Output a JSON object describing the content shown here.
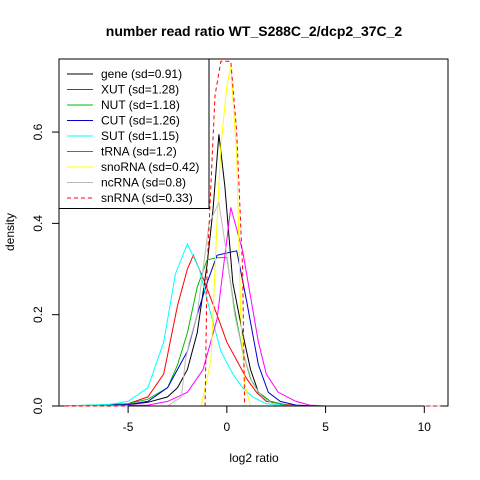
{
  "chart_data": {
    "type": "line",
    "title": "number read ratio WT_S288C_2/dcp2_37C_2",
    "xlabel": "log2 ratio",
    "ylabel": "density",
    "xlim": [
      -8.5,
      11.2
    ],
    "ylim": [
      0,
      0.76
    ],
    "xticks": [
      -5,
      0,
      5,
      10
    ],
    "yticks": [
      0.0,
      0.2,
      0.4,
      0.6
    ],
    "xtick_labels": [
      "-5",
      "0",
      "5",
      "10"
    ],
    "ytick_labels": [
      "0.0",
      "0.2",
      "0.4",
      "0.6"
    ],
    "grid": false,
    "legend_position": "top-left",
    "series": [
      {
        "name": "gene (sd=0.91)",
        "color": "#000000",
        "dashed": false,
        "points": [
          [
            -8.2,
            0
          ],
          [
            -5,
            0.003
          ],
          [
            -4,
            0.008
          ],
          [
            -3,
            0.02
          ],
          [
            -2.5,
            0.04
          ],
          [
            -2,
            0.08
          ],
          [
            -1.5,
            0.16
          ],
          [
            -1,
            0.31
          ],
          [
            -0.7,
            0.43
          ],
          [
            -0.4,
            0.595
          ],
          [
            -0.1,
            0.48
          ],
          [
            0.3,
            0.27
          ],
          [
            0.8,
            0.16
          ],
          [
            1.2,
            0.08
          ],
          [
            1.6,
            0.03
          ],
          [
            2.2,
            0.01
          ],
          [
            3,
            0.002
          ],
          [
            4,
            0
          ],
          [
            10.8,
            0
          ]
        ]
      },
      {
        "name": "XUT (sd=1.28)",
        "color": "#ff0000",
        "dashed": false,
        "points": [
          [
            -8.2,
            0
          ],
          [
            -6,
            0.002
          ],
          [
            -5,
            0.005
          ],
          [
            -4,
            0.02
          ],
          [
            -3.2,
            0.07
          ],
          [
            -2.5,
            0.22
          ],
          [
            -2,
            0.3
          ],
          [
            -1.7,
            0.33
          ],
          [
            -1.2,
            0.28
          ],
          [
            -0.5,
            0.2
          ],
          [
            0,
            0.14
          ],
          [
            0.5,
            0.1
          ],
          [
            1,
            0.06
          ],
          [
            1.5,
            0.03
          ],
          [
            2,
            0.01
          ],
          [
            3,
            0.003
          ],
          [
            4,
            0
          ],
          [
            10.8,
            0
          ]
        ]
      },
      {
        "name": "NUT (sd=1.18)",
        "color": "#00bb00",
        "dashed": false,
        "points": [
          [
            -8.2,
            0
          ],
          [
            -5,
            0.005
          ],
          [
            -4,
            0.015
          ],
          [
            -3,
            0.04
          ],
          [
            -2.5,
            0.09
          ],
          [
            -2,
            0.16
          ],
          [
            -1.5,
            0.26
          ],
          [
            -1,
            0.32
          ],
          [
            -0.5,
            0.325
          ],
          [
            0,
            0.325
          ],
          [
            0.4,
            0.21
          ],
          [
            0.8,
            0.12
          ],
          [
            1.2,
            0.06
          ],
          [
            1.6,
            0.03
          ],
          [
            2.2,
            0.01
          ],
          [
            3,
            0.002
          ],
          [
            4,
            0
          ],
          [
            10.8,
            0
          ]
        ]
      },
      {
        "name": "CUT (sd=1.26)",
        "color": "#0000cc",
        "dashed": false,
        "points": [
          [
            -8.2,
            0
          ],
          [
            -5,
            0.003
          ],
          [
            -4,
            0.01
          ],
          [
            -3,
            0.04
          ],
          [
            -2.5,
            0.08
          ],
          [
            -2,
            0.12
          ],
          [
            -1.5,
            0.2
          ],
          [
            -1,
            0.27
          ],
          [
            -0.5,
            0.33
          ],
          [
            0,
            0.335
          ],
          [
            0.5,
            0.34
          ],
          [
            1,
            0.23
          ],
          [
            1.6,
            0.09
          ],
          [
            2.1,
            0.03
          ],
          [
            2.7,
            0.01
          ],
          [
            3.5,
            0.002
          ],
          [
            4.5,
            0
          ],
          [
            10.8,
            0
          ]
        ]
      },
      {
        "name": "SUT (sd=1.15)",
        "color": "#00ffff",
        "dashed": false,
        "points": [
          [
            -8.2,
            0
          ],
          [
            -6,
            0.003
          ],
          [
            -5,
            0.01
          ],
          [
            -4,
            0.04
          ],
          [
            -3.2,
            0.14
          ],
          [
            -2.6,
            0.29
          ],
          [
            -2,
            0.355
          ],
          [
            -1.4,
            0.3
          ],
          [
            -0.8,
            0.2
          ],
          [
            -0.3,
            0.12
          ],
          [
            0.3,
            0.07
          ],
          [
            0.8,
            0.04
          ],
          [
            1.3,
            0.02
          ],
          [
            2,
            0.005
          ],
          [
            3,
            0.001
          ],
          [
            4,
            0
          ],
          [
            10.8,
            0
          ]
        ]
      },
      {
        "name": "tRNA (sd=1.2)",
        "color": "#ff00ff",
        "dashed": false,
        "points": [
          [
            -8.2,
            0
          ],
          [
            -4,
            0.002
          ],
          [
            -3,
            0.01
          ],
          [
            -2,
            0.03
          ],
          [
            -1.2,
            0.08
          ],
          [
            -0.5,
            0.19
          ],
          [
            0.2,
            0.435
          ],
          [
            0.8,
            0.34
          ],
          [
            1.2,
            0.24
          ],
          [
            1.6,
            0.14
          ],
          [
            2,
            0.07
          ],
          [
            2.6,
            0.03
          ],
          [
            3.5,
            0.01
          ],
          [
            4.2,
            0.002
          ],
          [
            5,
            0
          ],
          [
            10.8,
            0
          ]
        ]
      },
      {
        "name": "snoRNA (sd=0.42)",
        "color": "#ffff00",
        "dashed": false,
        "points": [
          [
            -8.2,
            0
          ],
          [
            -1.3,
            0
          ],
          [
            -0.8,
            0.1
          ],
          [
            -0.5,
            0.4
          ],
          [
            -0.3,
            0.57
          ],
          [
            0,
            0.7
          ],
          [
            0.2,
            0.745
          ],
          [
            0.5,
            0.55
          ],
          [
            0.7,
            0.2
          ],
          [
            0.9,
            0.05
          ],
          [
            1.2,
            0
          ],
          [
            10.8,
            0
          ]
        ]
      },
      {
        "name": "ncRNA (sd=0.8)",
        "color": "#bbbbbb",
        "dashed": false,
        "points": [
          [
            -8.2,
            0
          ],
          [
            -3,
            0
          ],
          [
            -2.3,
            0.02
          ],
          [
            -2.1,
            0.1
          ],
          [
            -1.9,
            0.14
          ],
          [
            -1.5,
            0.2
          ],
          [
            -1.2,
            0.3
          ],
          [
            -0.9,
            0.4
          ],
          [
            -0.4,
            0.445
          ],
          [
            0,
            0.33
          ],
          [
            0.4,
            0.2
          ],
          [
            0.8,
            0.12
          ],
          [
            1.3,
            0.05
          ],
          [
            1.8,
            0.02
          ],
          [
            2.5,
            0
          ],
          [
            10.8,
            0
          ]
        ]
      },
      {
        "name": "snRNA (sd=0.33)",
        "color": "#ff0000",
        "dashed": true,
        "points": [
          [
            -8.2,
            0
          ],
          [
            -1.1,
            0
          ],
          [
            -1,
            0.3
          ],
          [
            -0.6,
            0.68
          ],
          [
            -0.3,
            0.755
          ],
          [
            0.2,
            0.755
          ],
          [
            0.5,
            0.6
          ],
          [
            0.8,
            0.3
          ],
          [
            0.9,
            0
          ],
          [
            10.8,
            0
          ]
        ]
      }
    ]
  }
}
